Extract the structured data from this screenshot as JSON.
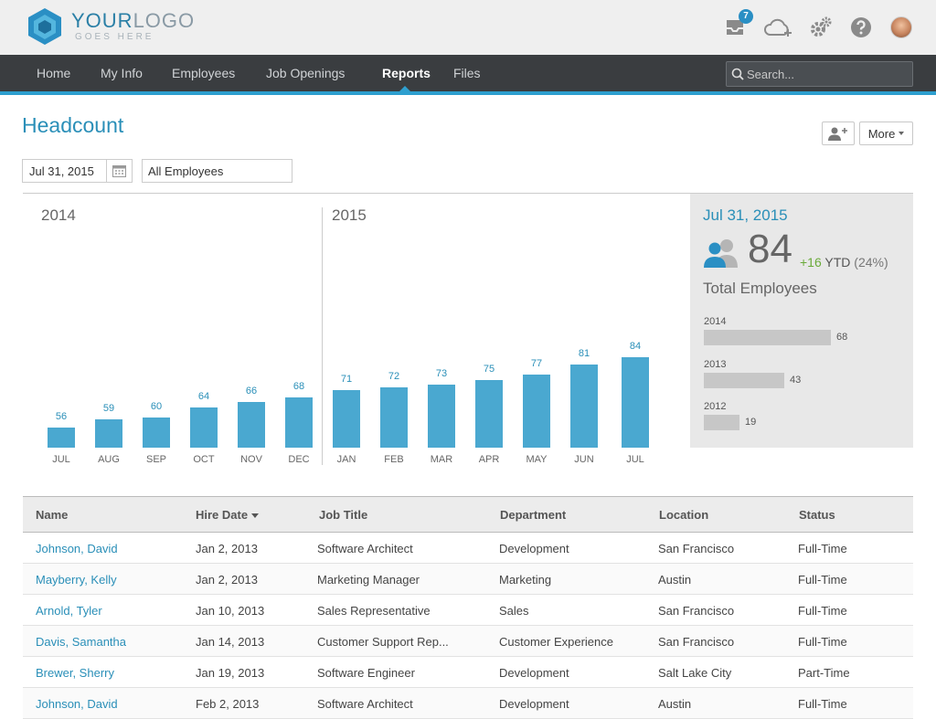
{
  "header": {
    "logo_main_a": "YOUR",
    "logo_main_b": "LOGO",
    "logo_sub": "GOES HERE",
    "notifications_count": "7"
  },
  "nav": {
    "items": [
      {
        "label": "Home"
      },
      {
        "label": "My Info"
      },
      {
        "label": "Employees"
      },
      {
        "label": "Job Openings"
      },
      {
        "label": "Reports"
      },
      {
        "label": "Files"
      }
    ],
    "active": "Reports",
    "search_placeholder": "Search..."
  },
  "page": {
    "title": "Headcount",
    "more_label": "More",
    "date_value": "Jul 31, 2015",
    "filter_value": "All Employees"
  },
  "chart_data": {
    "type": "bar",
    "year_labels": [
      "2014",
      "2015"
    ],
    "categories": [
      "JUL",
      "AUG",
      "SEP",
      "OCT",
      "NOV",
      "DEC",
      "JAN",
      "FEB",
      "MAR",
      "APR",
      "MAY",
      "JUN",
      "JUL"
    ],
    "values": [
      56,
      59,
      60,
      64,
      66,
      68,
      71,
      72,
      73,
      75,
      77,
      81,
      84
    ],
    "color": "#4aa8d0"
  },
  "summary": {
    "date": "Jul 31, 2015",
    "total": "84",
    "ytd_change": "+16",
    "ytd_label": "YTD",
    "ytd_pct": "(24%)",
    "label": "Total Employees",
    "years": [
      {
        "year": "2014",
        "value": 68
      },
      {
        "year": "2013",
        "value": 43
      },
      {
        "year": "2012",
        "value": 19
      }
    ]
  },
  "table": {
    "columns": [
      "Name",
      "Hire Date",
      "Job Title",
      "Department",
      "Location",
      "Status"
    ],
    "rows": [
      [
        "Johnson, David",
        "Jan 2, 2013",
        "Software Architect",
        "Development",
        "San Francisco",
        "Full-Time"
      ],
      [
        "Mayberry, Kelly",
        "Jan 2, 2013",
        "Marketing Manager",
        "Marketing",
        "Austin",
        "Full-Time"
      ],
      [
        "Arnold, Tyler",
        "Jan 10, 2013",
        "Sales Representative",
        "Sales",
        "San Francisco",
        "Full-Time"
      ],
      [
        "Davis, Samantha",
        "Jan 14, 2013",
        "Customer Support Rep...",
        "Customer Experience",
        "San Francisco",
        "Full-Time"
      ],
      [
        "Brewer, Sherry",
        "Jan 19, 2013",
        "Software Engineer",
        "Development",
        "Salt Lake City",
        "Part-Time"
      ],
      [
        "Johnson, David",
        "Feb 2, 2013",
        "Software Architect",
        "Development",
        "Austin",
        "Full-Time"
      ]
    ]
  }
}
